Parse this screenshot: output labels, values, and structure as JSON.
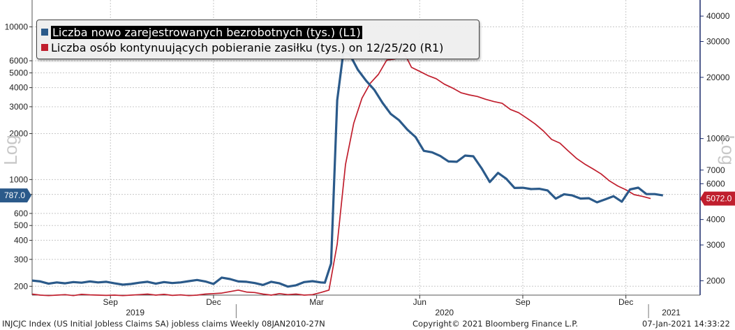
{
  "chart_data": {
    "type": "line",
    "x_axis": {
      "month_ticks": [
        {
          "label": "Sep",
          "x": 2019.69
        },
        {
          "label": "Dec",
          "x": 2019.94
        },
        {
          "label": "Mar",
          "x": 2020.19
        },
        {
          "label": "Jun",
          "x": 2020.44
        },
        {
          "label": "Sep",
          "x": 2020.69
        },
        {
          "label": "Dec",
          "x": 2020.94
        }
      ],
      "year_labels": [
        {
          "label": "2019",
          "x": 2019.75
        },
        {
          "label": "2020",
          "x": 2020.5
        },
        {
          "label": "2021",
          "x": 2021.05
        }
      ],
      "range": [
        2019.5,
        2021.12
      ]
    },
    "left_axis": {
      "scale": "log",
      "side_label": "Log",
      "range": [
        175,
        15000
      ],
      "ticks": [
        200,
        300,
        400,
        500,
        600,
        800,
        1000,
        2000,
        3000,
        4000,
        5000,
        6000,
        10000
      ],
      "tick_labels": [
        "200",
        "300",
        "400",
        "500",
        "600",
        "800",
        "1000",
        "2000",
        "3000",
        "4000",
        "5000",
        "6000",
        "10000"
      ]
    },
    "right_axis": {
      "scale": "log",
      "side_label": "Log",
      "range": [
        1700,
        48000
      ],
      "ticks": [
        2000,
        3000,
        4000,
        5000,
        6000,
        7000,
        10000,
        20000,
        30000,
        40000
      ],
      "tick_labels": [
        "2000",
        "3000",
        "4000",
        "5000",
        "6000",
        "7000",
        "10000",
        "20000",
        "30000",
        "40000"
      ]
    },
    "series": [
      {
        "name": "Liczba nowo zarejestrowanych bezrobotnych (tys.) (L1)",
        "axis": "left",
        "color": "#2b5a8a",
        "last_value_label": "787.0",
        "points": [
          [
            2019.5,
            218
          ],
          [
            2019.52,
            215
          ],
          [
            2019.54,
            208
          ],
          [
            2019.56,
            212
          ],
          [
            2019.58,
            209
          ],
          [
            2019.6,
            213
          ],
          [
            2019.62,
            211
          ],
          [
            2019.64,
            215
          ],
          [
            2019.66,
            212
          ],
          [
            2019.68,
            214
          ],
          [
            2019.7,
            209
          ],
          [
            2019.72,
            205
          ],
          [
            2019.74,
            207
          ],
          [
            2019.76,
            211
          ],
          [
            2019.78,
            214
          ],
          [
            2019.8,
            208
          ],
          [
            2019.82,
            213
          ],
          [
            2019.84,
            210
          ],
          [
            2019.86,
            212
          ],
          [
            2019.88,
            216
          ],
          [
            2019.9,
            220
          ],
          [
            2019.92,
            215
          ],
          [
            2019.94,
            207
          ],
          [
            2019.96,
            228
          ],
          [
            2019.98,
            223
          ],
          [
            2020.0,
            215
          ],
          [
            2020.02,
            214
          ],
          [
            2020.04,
            210
          ],
          [
            2020.06,
            204
          ],
          [
            2020.08,
            214
          ],
          [
            2020.1,
            209
          ],
          [
            2020.12,
            199
          ],
          [
            2020.14,
            203
          ],
          [
            2020.16,
            213
          ],
          [
            2020.18,
            216
          ],
          [
            2020.2,
            212
          ],
          [
            2020.21,
            211
          ],
          [
            2020.225,
            282
          ],
          [
            2020.24,
            3307
          ],
          [
            2020.255,
            6867
          ],
          [
            2020.27,
            6615
          ],
          [
            2020.29,
            5237
          ],
          [
            2020.31,
            4442
          ],
          [
            2020.33,
            3867
          ],
          [
            2020.35,
            3176
          ],
          [
            2020.37,
            2687
          ],
          [
            2020.39,
            2446
          ],
          [
            2020.41,
            2123
          ],
          [
            2020.43,
            1897
          ],
          [
            2020.45,
            1542
          ],
          [
            2020.47,
            1508
          ],
          [
            2020.49,
            1427
          ],
          [
            2020.51,
            1314
          ],
          [
            2020.53,
            1307
          ],
          [
            2020.55,
            1435
          ],
          [
            2020.57,
            1420
          ],
          [
            2020.59,
            1187
          ],
          [
            2020.61,
            963
          ],
          [
            2020.63,
            1106
          ],
          [
            2020.65,
            1011
          ],
          [
            2020.67,
            881
          ],
          [
            2020.69,
            884
          ],
          [
            2020.71,
            866
          ],
          [
            2020.73,
            870
          ],
          [
            2020.75,
            849
          ],
          [
            2020.77,
            750
          ],
          [
            2020.79,
            801
          ],
          [
            2020.81,
            787
          ],
          [
            2020.83,
            751
          ],
          [
            2020.85,
            755
          ],
          [
            2020.87,
            709
          ],
          [
            2020.89,
            742
          ],
          [
            2020.91,
            778
          ],
          [
            2020.93,
            716
          ],
          [
            2020.95,
            862
          ],
          [
            2020.97,
            885
          ],
          [
            2020.99,
            803
          ],
          [
            2021.01,
            803
          ],
          [
            2021.03,
            787
          ]
        ]
      },
      {
        "name": "Liczba osób kontynuujących pobieranie zasiłku (tys.) on 12/25/20 (R1)",
        "axis": "right",
        "color": "#c01e2d",
        "last_value_label": "5072.0",
        "points": [
          [
            2019.5,
            1720
          ],
          [
            2019.52,
            1700
          ],
          [
            2019.54,
            1690
          ],
          [
            2019.56,
            1700
          ],
          [
            2019.58,
            1710
          ],
          [
            2019.6,
            1690
          ],
          [
            2019.62,
            1715
          ],
          [
            2019.64,
            1705
          ],
          [
            2019.66,
            1700
          ],
          [
            2019.68,
            1695
          ],
          [
            2019.7,
            1700
          ],
          [
            2019.72,
            1690
          ],
          [
            2019.74,
            1700
          ],
          [
            2019.76,
            1710
          ],
          [
            2019.78,
            1720
          ],
          [
            2019.8,
            1700
          ],
          [
            2019.82,
            1715
          ],
          [
            2019.84,
            1695
          ],
          [
            2019.86,
            1705
          ],
          [
            2019.88,
            1690
          ],
          [
            2019.9,
            1700
          ],
          [
            2019.92,
            1720
          ],
          [
            2019.94,
            1730
          ],
          [
            2019.96,
            1740
          ],
          [
            2019.98,
            1770
          ],
          [
            2020.0,
            1800
          ],
          [
            2020.02,
            1760
          ],
          [
            2020.04,
            1750
          ],
          [
            2020.06,
            1720
          ],
          [
            2020.08,
            1700
          ],
          [
            2020.1,
            1730
          ],
          [
            2020.12,
            1710
          ],
          [
            2020.14,
            1720
          ],
          [
            2020.16,
            1700
          ],
          [
            2020.18,
            1710
          ],
          [
            2020.2,
            1750
          ],
          [
            2020.22,
            1800
          ],
          [
            2020.24,
            3030
          ],
          [
            2020.26,
            7460
          ],
          [
            2020.28,
            11900
          ],
          [
            2020.3,
            15800
          ],
          [
            2020.32,
            18700
          ],
          [
            2020.34,
            20700
          ],
          [
            2020.36,
            24300
          ],
          [
            2020.38,
            24600
          ],
          [
            2020.4,
            27000
          ],
          [
            2020.42,
            22400
          ],
          [
            2020.44,
            21400
          ],
          [
            2020.46,
            20400
          ],
          [
            2020.48,
            19700
          ],
          [
            2020.5,
            18500
          ],
          [
            2020.52,
            17700
          ],
          [
            2020.54,
            16800
          ],
          [
            2020.56,
            16400
          ],
          [
            2020.58,
            16100
          ],
          [
            2020.6,
            15600
          ],
          [
            2020.62,
            15200
          ],
          [
            2020.64,
            14900
          ],
          [
            2020.66,
            13900
          ],
          [
            2020.68,
            13400
          ],
          [
            2020.7,
            12600
          ],
          [
            2020.72,
            11800
          ],
          [
            2020.74,
            10900
          ],
          [
            2020.76,
            9900
          ],
          [
            2020.78,
            9500
          ],
          [
            2020.8,
            8700
          ],
          [
            2020.82,
            8000
          ],
          [
            2020.84,
            7500
          ],
          [
            2020.86,
            7100
          ],
          [
            2020.88,
            6700
          ],
          [
            2020.9,
            6200
          ],
          [
            2020.92,
            5850
          ],
          [
            2020.94,
            5600
          ],
          [
            2020.96,
            5300
          ],
          [
            2020.98,
            5200
          ],
          [
            2021.0,
            5072
          ]
        ]
      }
    ]
  },
  "legend": {
    "l1": "Liczba nowo zarejestrowanych bezrobotnych (tys.) (L1)",
    "r1": "Liczba osób kontynuujących pobieranie zasiłku (tys.) on 12/25/20 (R1)"
  },
  "footer": {
    "left": "INJCJC Index (US Initial Jobless Claims SA) jobless claims  Weekly 08JAN2010-27N",
    "center": "Copyright© 2021 Bloomberg Finance L.P.",
    "right": "07-Jan-2021 14:33:22"
  },
  "colors": {
    "l1": "#2b5a8a",
    "r1": "#c01e2d",
    "grid": "#c8c8c8",
    "axis": "#1a2a6a"
  }
}
